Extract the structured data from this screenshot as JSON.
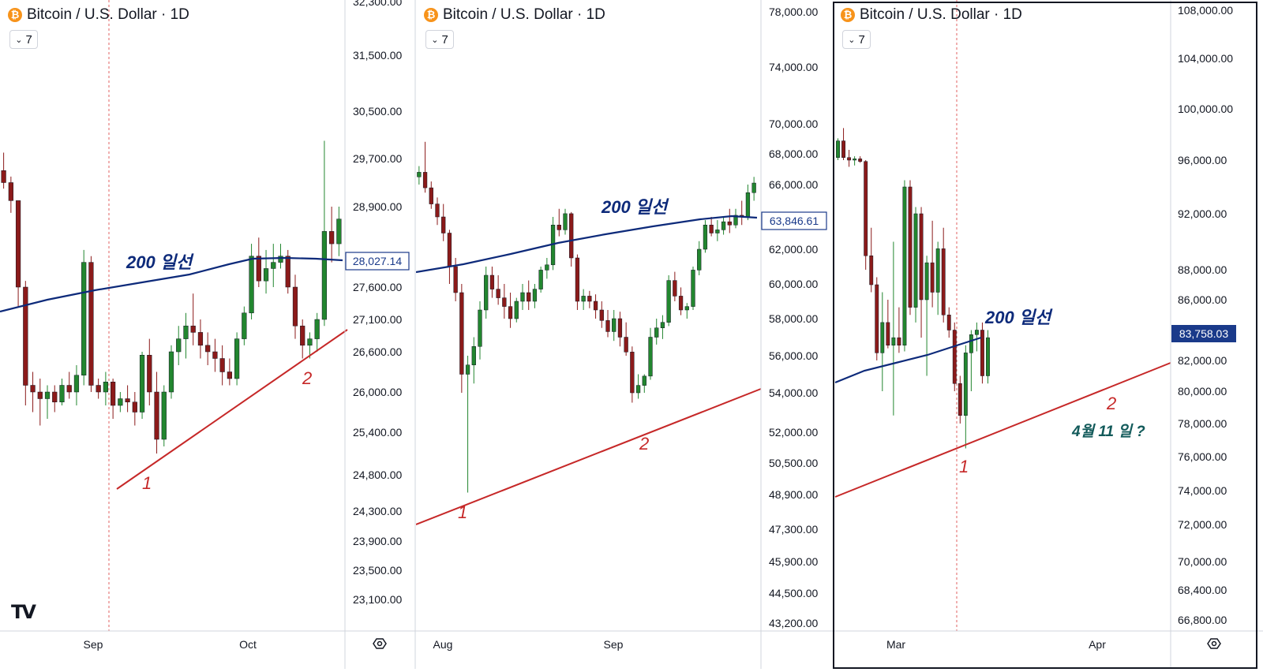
{
  "panels": [
    {
      "id": "p1",
      "header": {
        "title": "Bitcoin / U.S. Dollar · 1D",
        "icon": "bitcoin-icon"
      },
      "interval_label": "7",
      "price_ticks": [
        "32,300.00",
        "31,500.00",
        "30,500.00",
        "29,700.00",
        "28,900.00",
        "27,600.00",
        "27,100.00",
        "26,600.00",
        "26,000.00",
        "25,400.00",
        "24,800.00",
        "24,300.00",
        "23,900.00",
        "23,500.00",
        "23,100.00"
      ],
      "time_ticks": [
        "Sep",
        "Oct"
      ],
      "ma_label": "200 일선",
      "price_badge": "28,027.14",
      "annotations": [
        "1",
        "2"
      ]
    },
    {
      "id": "p2",
      "header": {
        "title": "Bitcoin / U.S. Dollar · 1D",
        "icon": "bitcoin-icon"
      },
      "interval_label": "7",
      "price_ticks": [
        "78,000.00",
        "74,000.00",
        "70,000.00",
        "68,000.00",
        "66,000.00",
        "62,000.00",
        "60,000.00",
        "58,000.00",
        "56,000.00",
        "54,000.00",
        "52,000.00",
        "50,500.00",
        "48,900.00",
        "47,300.00",
        "45,900.00",
        "44,500.00",
        "43,200.00"
      ],
      "time_ticks": [
        "Aug",
        "Sep"
      ],
      "ma_label": "200 일선",
      "price_badge": "63,846.61",
      "annotations": [
        "1",
        "2"
      ]
    },
    {
      "id": "p3",
      "header": {
        "title": "Bitcoin / U.S. Dollar · 1D",
        "icon": "bitcoin-icon"
      },
      "interval_label": "7",
      "price_ticks": [
        "108,000.00",
        "104,000.00",
        "100,000.00",
        "96,000.00",
        "92,000.00",
        "88,000.00",
        "86,000.00",
        "82,000.00",
        "80,000.00",
        "78,000.00",
        "76,000.00",
        "74,000.00",
        "72,000.00",
        "70,000.00",
        "68,400.00",
        "66,800.00"
      ],
      "time_ticks": [
        "Mar",
        "Apr"
      ],
      "ma_label": "200 일선",
      "price_badge": "83,758.03",
      "annotations": [
        "1",
        "2",
        "4월 11 일 ?"
      ]
    }
  ],
  "colors": {
    "up": "#22862f",
    "down": "#8b1a1a",
    "ma": "#0d2a7a",
    "trend": "#c62828",
    "badge_fill": "#1a3a8a",
    "grid_line": "#d1d4dc",
    "vline": "#e06060"
  },
  "chart_data": [
    {
      "type": "candlestick",
      "title": "Bitcoin / U.S. Dollar · 1D",
      "x_range": [
        "Aug",
        "Oct"
      ],
      "y_range": [
        22900,
        32300
      ],
      "ma_label": "200 일선",
      "ma_value_last": 28027.14,
      "candles": [
        [
          29500,
          29800,
          29200,
          29300
        ],
        [
          29300,
          29400,
          28800,
          29000
        ],
        [
          29000,
          29000,
          27300,
          27600
        ],
        [
          27600,
          27700,
          25800,
          26100
        ],
        [
          26100,
          26300,
          25700,
          26000
        ],
        [
          26000,
          26200,
          25500,
          25900
        ],
        [
          25900,
          26100,
          25600,
          26000
        ],
        [
          26000,
          26100,
          25700,
          25850
        ],
        [
          25850,
          26200,
          25800,
          26100
        ],
        [
          26100,
          26300,
          25900,
          26000
        ],
        [
          26000,
          26400,
          25800,
          26250
        ],
        [
          26250,
          28200,
          26100,
          28000
        ],
        [
          28000,
          28100,
          26000,
          26100
        ],
        [
          26100,
          26200,
          25900,
          26000
        ],
        [
          26000,
          26300,
          25800,
          26150
        ],
        [
          26150,
          26200,
          25600,
          25800
        ],
        [
          25800,
          26000,
          25700,
          25900
        ],
        [
          25900,
          26100,
          25700,
          25850
        ],
        [
          25850,
          26000,
          25500,
          25700
        ],
        [
          25700,
          26600,
          25600,
          26550
        ],
        [
          26550,
          26800,
          25800,
          26000
        ],
        [
          26000,
          26300,
          25100,
          25300
        ],
        [
          25300,
          26100,
          25200,
          26000
        ],
        [
          26000,
          26700,
          25900,
          26600
        ],
        [
          26600,
          27000,
          26400,
          26800
        ],
        [
          26800,
          27200,
          26500,
          27000
        ],
        [
          27000,
          27500,
          26700,
          26900
        ],
        [
          26900,
          27100,
          26500,
          26700
        ],
        [
          26700,
          26900,
          26400,
          26600
        ],
        [
          26600,
          26800,
          26300,
          26500
        ],
        [
          26500,
          26700,
          26100,
          26300
        ],
        [
          26300,
          26500,
          26100,
          26200
        ],
        [
          26200,
          26900,
          26100,
          26800
        ],
        [
          26800,
          27300,
          26700,
          27200
        ],
        [
          27200,
          28300,
          27100,
          28100
        ],
        [
          28100,
          28400,
          27600,
          27700
        ],
        [
          27700,
          28200,
          27500,
          27900
        ],
        [
          27900,
          28300,
          27600,
          28000
        ],
        [
          28000,
          28300,
          27900,
          28100
        ],
        [
          28100,
          28200,
          27500,
          27600
        ],
        [
          27600,
          27800,
          26800,
          27000
        ],
        [
          27000,
          27100,
          26500,
          26700
        ],
        [
          26700,
          26900,
          26500,
          26800
        ],
        [
          26800,
          27200,
          26600,
          27100
        ],
        [
          27100,
          30000,
          27000,
          28500
        ],
        [
          28500,
          28900,
          28000,
          28300
        ],
        [
          28300,
          28900,
          28100,
          28700
        ]
      ]
    },
    {
      "type": "candlestick",
      "title": "Bitcoin / U.S. Dollar · 1D",
      "x_range": [
        "Jul",
        "Sep"
      ],
      "y_range": [
        43000,
        78000
      ],
      "ma_label": "200 일선",
      "ma_value_last": 63846.61,
      "candles": [
        [
          66500,
          67200,
          66000,
          66800
        ],
        [
          66800,
          68800,
          65500,
          65800
        ],
        [
          65800,
          66200,
          64500,
          64800
        ],
        [
          64800,
          65200,
          63500,
          64000
        ],
        [
          64000,
          64800,
          62500,
          63000
        ],
        [
          63000,
          63200,
          60000,
          61000
        ],
        [
          61000,
          61500,
          59000,
          59500
        ],
        [
          59500,
          60000,
          54000,
          55000
        ],
        [
          55000,
          56000,
          49000,
          55500
        ],
        [
          55500,
          57000,
          54500,
          56500
        ],
        [
          56500,
          59000,
          55800,
          58500
        ],
        [
          58500,
          61000,
          58000,
          60500
        ],
        [
          60500,
          61000,
          59200,
          59700
        ],
        [
          59700,
          60500,
          58800,
          59200
        ],
        [
          59200,
          60000,
          58000,
          58700
        ],
        [
          58700,
          59500,
          57500,
          58000
        ],
        [
          58000,
          59200,
          57800,
          59000
        ],
        [
          59000,
          60000,
          58500,
          59500
        ],
        [
          59500,
          60200,
          58500,
          59000
        ],
        [
          59000,
          60000,
          58600,
          59700
        ],
        [
          59700,
          61000,
          59500,
          60800
        ],
        [
          60800,
          61500,
          60300,
          61100
        ],
        [
          61100,
          64000,
          60800,
          63500
        ],
        [
          63500,
          64500,
          62800,
          63200
        ],
        [
          63200,
          64500,
          62900,
          64200
        ],
        [
          64200,
          64300,
          61000,
          61500
        ],
        [
          61500,
          61700,
          58500,
          59000
        ],
        [
          59000,
          59700,
          58500,
          59300
        ],
        [
          59300,
          59600,
          58600,
          59000
        ],
        [
          59000,
          59400,
          58000,
          58500
        ],
        [
          58500,
          59000,
          57500,
          57900
        ],
        [
          57900,
          58500,
          57000,
          57300
        ],
        [
          57300,
          58500,
          56800,
          58000
        ],
        [
          58000,
          58400,
          56500,
          57000
        ],
        [
          57000,
          57800,
          56000,
          56200
        ],
        [
          56200,
          56500,
          53500,
          54000
        ],
        [
          54000,
          55000,
          53700,
          54400
        ],
        [
          54400,
          55000,
          54000,
          54900
        ],
        [
          54900,
          57500,
          54700,
          57000
        ],
        [
          57000,
          58000,
          56600,
          57500
        ],
        [
          57500,
          58200,
          56900,
          57800
        ],
        [
          57800,
          60500,
          57600,
          60200
        ],
        [
          60200,
          60700,
          59000,
          59300
        ],
        [
          59300,
          59800,
          58200,
          58500
        ],
        [
          58500,
          58900,
          58000,
          58700
        ],
        [
          58700,
          61000,
          58500,
          60800
        ],
        [
          60800,
          62500,
          60500,
          62000
        ],
        [
          62000,
          63800,
          61800,
          63500
        ],
        [
          63500,
          64000,
          62800,
          63000
        ],
        [
          63000,
          63800,
          62500,
          63200
        ],
        [
          63200,
          64000,
          62900,
          63700
        ],
        [
          63700,
          64500,
          63000,
          63500
        ],
        [
          63500,
          64500,
          63300,
          64100
        ],
        [
          64100,
          65000,
          63500,
          64000
        ],
        [
          64000,
          66000,
          63800,
          65500
        ],
        [
          65500,
          66500,
          65000,
          66100
        ]
      ]
    },
    {
      "type": "candlestick",
      "title": "Bitcoin / U.S. Dollar · 1D",
      "x_range": [
        "Feb",
        "Apr"
      ],
      "y_range": [
        66000,
        108000
      ],
      "ma_label": "200 일선",
      "ma_value_last": 83758.03,
      "candles": [
        [
          96200,
          97700,
          96000,
          97500
        ],
        [
          97500,
          98500,
          96000,
          96200
        ],
        [
          96200,
          96800,
          95500,
          96000
        ],
        [
          96000,
          96300,
          95600,
          96100
        ],
        [
          96100,
          96300,
          95800,
          95900
        ],
        [
          95900,
          96000,
          88000,
          89000
        ],
        [
          89000,
          91000,
          86500,
          87000
        ],
        [
          87000,
          87500,
          82000,
          82500
        ],
        [
          82500,
          86500,
          80000,
          84500
        ],
        [
          84500,
          86000,
          82800,
          83000
        ],
        [
          83000,
          90000,
          78500,
          83500
        ],
        [
          83500,
          85500,
          82500,
          83000
        ],
        [
          83000,
          94500,
          82600,
          94000
        ],
        [
          94000,
          94500,
          85000,
          85500
        ],
        [
          85500,
          92500,
          84500,
          92000
        ],
        [
          92000,
          92500,
          83500,
          86000
        ],
        [
          86000,
          89000,
          81000,
          88500
        ],
        [
          88500,
          91500,
          85500,
          86500
        ],
        [
          86500,
          90000,
          85000,
          89500
        ],
        [
          89500,
          91000,
          84500,
          85000
        ],
        [
          85000,
          85500,
          83500,
          84000
        ],
        [
          84000,
          84500,
          80000,
          80500
        ],
        [
          80500,
          81000,
          78000,
          78500
        ],
        [
          78500,
          83000,
          76500,
          82500
        ],
        [
          82500,
          84000,
          80000,
          83700
        ],
        [
          83700,
          84500,
          82600,
          84000
        ],
        [
          84000,
          84500,
          80500,
          81000
        ],
        [
          81000,
          84000,
          80500,
          83500
        ]
      ]
    }
  ]
}
